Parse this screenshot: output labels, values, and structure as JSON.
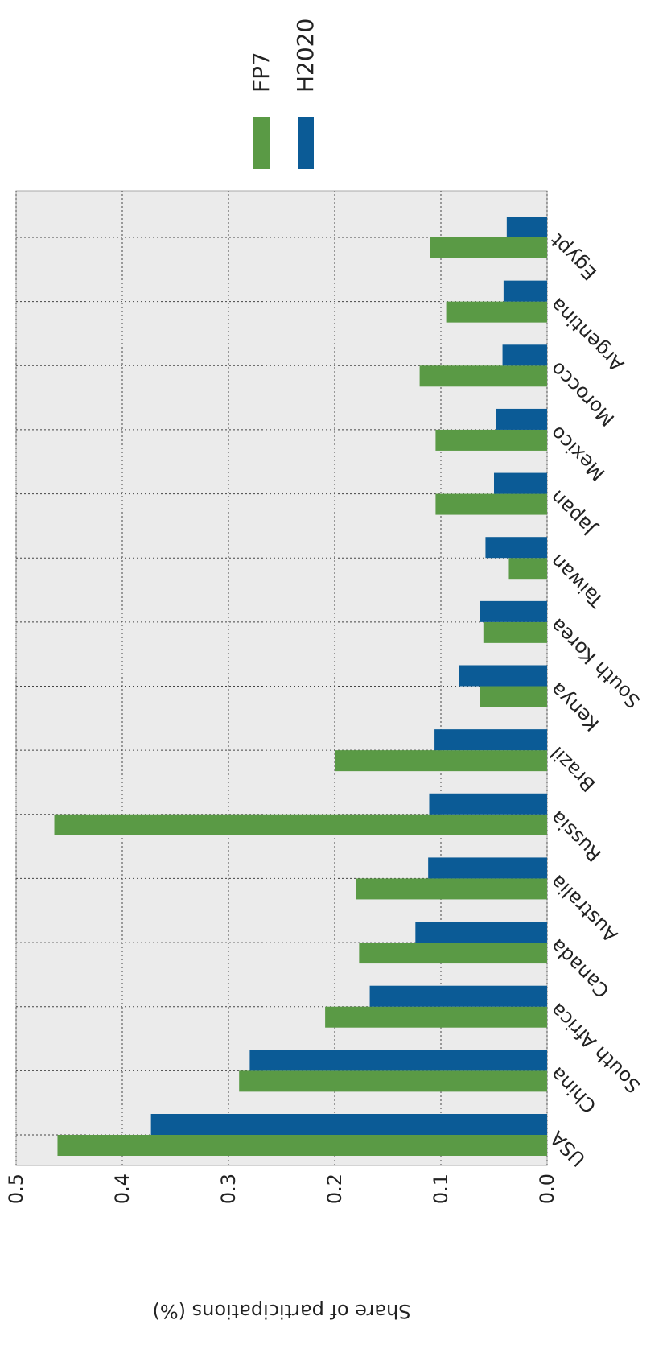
{
  "chart_data": {
    "type": "bar",
    "ylabel": "Share of participations (%)",
    "categories": [
      "USA",
      "China",
      "South Africa",
      "Canada",
      "Australia",
      "Russia",
      "Brazil",
      "Kenya",
      "South Korea",
      "Taiwan",
      "Japan",
      "Mexico",
      "Morocco",
      "Argentina",
      "Egypt"
    ],
    "series": [
      {
        "name": "FP7",
        "color": "#5a9a45",
        "values": [
          0.461,
          0.29,
          0.209,
          0.177,
          0.18,
          0.464,
          0.2,
          0.063,
          0.06,
          0.036,
          0.105,
          0.105,
          0.12,
          0.095,
          0.11
        ]
      },
      {
        "name": "H2020",
        "color": "#0b5b96",
        "values": [
          0.373,
          0.28,
          0.167,
          0.124,
          0.112,
          0.111,
          0.106,
          0.083,
          0.063,
          0.058,
          0.05,
          0.048,
          0.042,
          0.041,
          0.038
        ]
      }
    ],
    "ylim": [
      0,
      0.5
    ],
    "yticks": [
      {
        "value": 0,
        "label": "0.0"
      },
      0.1,
      0.2,
      0.3,
      0.4,
      0.5
    ],
    "grid": true
  }
}
